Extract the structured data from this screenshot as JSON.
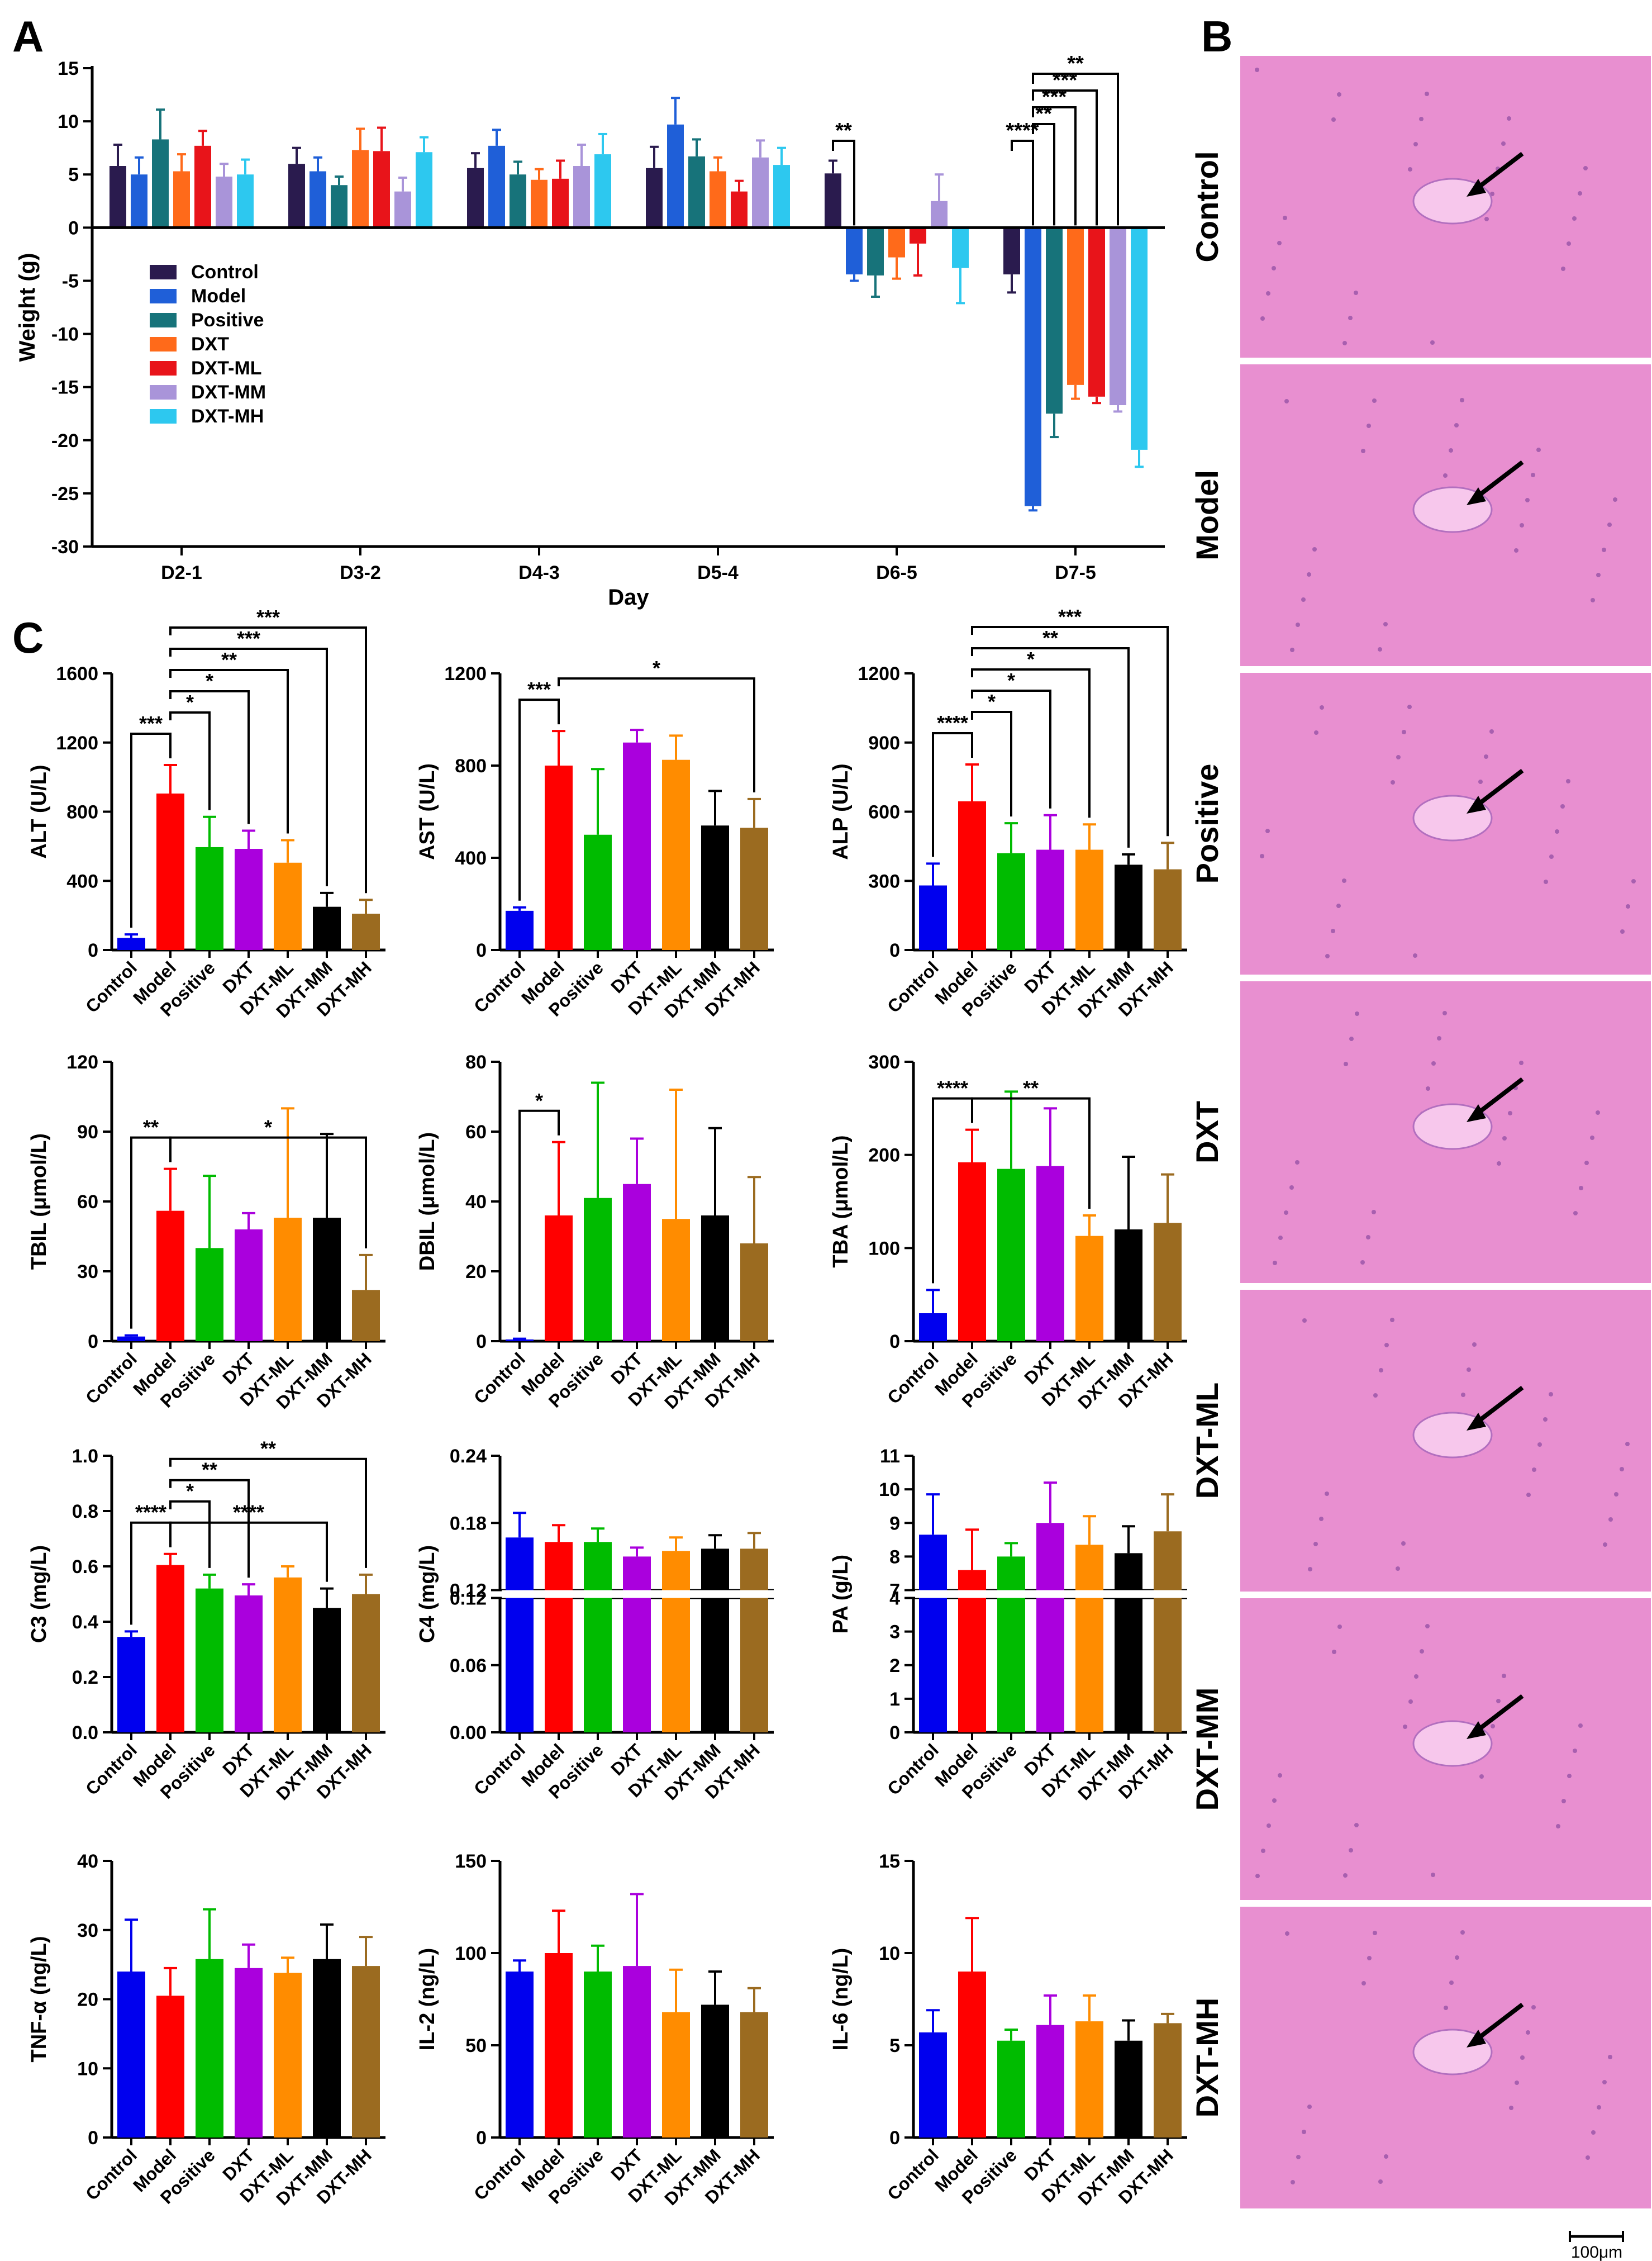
{
  "panels": {
    "A": "A",
    "B": "B",
    "C": "C"
  },
  "groups": [
    "Control",
    "Model",
    "Positive",
    "DXT",
    "DXT-ML",
    "DXT-MM",
    "DXT-MH"
  ],
  "colors": {
    "weight": [
      "#2a1b4e",
      "#1f5fd8",
      "#17737a",
      "#ff6a1a",
      "#e8141a",
      "#a994d9",
      "#2dc8ef"
    ],
    "serum": [
      "#0000ee",
      "#ff0000",
      "#00bb00",
      "#aa00dd",
      "#ff8c00",
      "#000000",
      "#9b6b20"
    ],
    "tissue": "#e88fd0"
  },
  "histology": {
    "labels": [
      "Control",
      "Model",
      "Positive",
      "DXT",
      "DXT-ML",
      "DXT-MM",
      "DXT-MH"
    ],
    "scale_bar": "100μm"
  },
  "chart_data": [
    {
      "id": "A",
      "type": "bar",
      "title": "",
      "xlabel": "Day",
      "ylabel": "Weight (g)",
      "ylim": [
        -30,
        15
      ],
      "yticks": [
        15,
        10,
        5,
        0,
        -5,
        -10,
        -15,
        -20,
        -25,
        -30
      ],
      "categories": [
        "D2-1",
        "D3-2",
        "D4-3",
        "D5-4",
        "D6-5",
        "D7-5"
      ],
      "legend": [
        "Control",
        "Model",
        "Positive",
        "DXT",
        "DXT-ML",
        "DXT-MM",
        "DXT-MH"
      ],
      "series": [
        {
          "name": "Control",
          "values": [
            5.8,
            6.0,
            5.6,
            5.6,
            5.1,
            -4.4
          ],
          "errors": [
            2.0,
            1.5,
            1.4,
            2.0,
            1.2,
            1.7
          ]
        },
        {
          "name": "Model",
          "values": [
            5.0,
            5.3,
            7.7,
            9.7,
            -4.4,
            -26.2
          ],
          "errors": [
            1.6,
            1.3,
            1.5,
            2.5,
            0.6,
            0.4
          ]
        },
        {
          "name": "Positive",
          "values": [
            8.3,
            4.0,
            5.0,
            6.7,
            -4.5,
            -17.5
          ],
          "errors": [
            2.8,
            0.8,
            1.2,
            1.6,
            2.0,
            2.2
          ]
        },
        {
          "name": "DXT",
          "values": [
            5.3,
            7.3,
            4.5,
            5.3,
            -2.8,
            -14.8
          ],
          "errors": [
            1.6,
            2.0,
            1.0,
            1.3,
            2.0,
            1.3
          ]
        },
        {
          "name": "DXT-ML",
          "values": [
            7.7,
            7.2,
            4.6,
            3.4,
            -1.5,
            -15.9
          ],
          "errors": [
            1.4,
            2.2,
            1.7,
            1.0,
            3.0,
            0.6
          ]
        },
        {
          "name": "DXT-MM",
          "values": [
            4.8,
            3.4,
            5.8,
            6.6,
            2.5,
            -16.7
          ],
          "errors": [
            1.2,
            1.3,
            2.0,
            1.6,
            2.5,
            0.6
          ]
        },
        {
          "name": "DXT-MH",
          "values": [
            5.0,
            7.1,
            6.9,
            5.9,
            -3.8,
            -20.9
          ],
          "errors": [
            1.4,
            1.4,
            1.9,
            1.6,
            3.3,
            1.6
          ]
        }
      ],
      "brackets": [
        {
          "day": 4,
          "from": 0,
          "to": 1,
          "level": 0,
          "label": "**"
        },
        {
          "day": 5,
          "from": 0,
          "to": 1,
          "level": 0,
          "label": "****"
        },
        {
          "day": 5,
          "from": 1,
          "to": 2,
          "level": 1,
          "label": "**"
        },
        {
          "day": 5,
          "from": 1,
          "to": 3,
          "level": 2,
          "label": "***"
        },
        {
          "day": 5,
          "from": 1,
          "to": 4,
          "level": 3,
          "label": "***"
        },
        {
          "day": 5,
          "from": 1,
          "to": 5,
          "level": 4,
          "label": "**"
        }
      ]
    },
    {
      "id": "ALT",
      "type": "bar",
      "ylabel": "ALT (U/L)",
      "ylim": [
        0,
        1600
      ],
      "yticks": [
        0,
        400,
        800,
        1200,
        1600
      ],
      "values": [
        70,
        905,
        595,
        585,
        505,
        250,
        210
      ],
      "errors": [
        20,
        165,
        175,
        105,
        130,
        80,
        80
      ],
      "brackets": [
        {
          "from": 0,
          "to": 1,
          "level": 0,
          "label": "***"
        },
        {
          "from": 1,
          "to": 2,
          "level": 1,
          "label": "*"
        },
        {
          "from": 1,
          "to": 3,
          "level": 2,
          "label": "*"
        },
        {
          "from": 1,
          "to": 4,
          "level": 3,
          "label": "**"
        },
        {
          "from": 1,
          "to": 5,
          "level": 4,
          "label": "***"
        },
        {
          "from": 1,
          "to": 6,
          "level": 5,
          "label": "***"
        }
      ]
    },
    {
      "id": "AST",
      "type": "bar",
      "ylabel": "AST (U/L)",
      "ylim": [
        0,
        1200
      ],
      "yticks": [
        0,
        400,
        800,
        1200
      ],
      "values": [
        170,
        800,
        500,
        900,
        825,
        540,
        530
      ],
      "errors": [
        15,
        150,
        285,
        55,
        105,
        150,
        125
      ],
      "brackets": [
        {
          "from": 0,
          "to": 1,
          "level": 0,
          "label": "***"
        },
        {
          "from": 1,
          "to": 6,
          "level": 1,
          "label": "*"
        }
      ]
    },
    {
      "id": "ALP",
      "type": "bar",
      "ylabel": "ALP (U/L)",
      "ylim": [
        0,
        1200
      ],
      "yticks": [
        0,
        300,
        600,
        900,
        1200
      ],
      "values": [
        280,
        645,
        420,
        435,
        435,
        370,
        350
      ],
      "errors": [
        95,
        160,
        130,
        150,
        110,
        45,
        115
      ],
      "brackets": [
        {
          "from": 0,
          "to": 1,
          "level": 0,
          "label": "****"
        },
        {
          "from": 1,
          "to": 2,
          "level": 1,
          "label": "*"
        },
        {
          "from": 1,
          "to": 3,
          "level": 2,
          "label": "*"
        },
        {
          "from": 1,
          "to": 4,
          "level": 3,
          "label": "*"
        },
        {
          "from": 1,
          "to": 5,
          "level": 4,
          "label": "**"
        },
        {
          "from": 1,
          "to": 6,
          "level": 5,
          "label": "***"
        }
      ]
    },
    {
      "id": "TBIL",
      "type": "bar",
      "ylabel": "TBIL (μmol/L)",
      "ylim": [
        0,
        120
      ],
      "yticks": [
        0,
        30,
        60,
        90,
        120
      ],
      "values": [
        2,
        56,
        40,
        48,
        53,
        53,
        22
      ],
      "errors": [
        0.5,
        18,
        31,
        7,
        47,
        36,
        15
      ],
      "brackets": [
        {
          "from": 0,
          "to": 1,
          "level": 0,
          "label": "**"
        },
        {
          "from": 1,
          "to": 6,
          "level": 0,
          "label": "*"
        }
      ]
    },
    {
      "id": "DBIL",
      "type": "bar",
      "ylabel": "DBIL (μmol/L)",
      "ylim": [
        0,
        80
      ],
      "yticks": [
        0,
        20,
        40,
        60,
        80
      ],
      "values": [
        0.5,
        36,
        41,
        45,
        35,
        36,
        28
      ],
      "errors": [
        0.2,
        21,
        33,
        13,
        37,
        25,
        19
      ],
      "brackets": [
        {
          "from": 0,
          "to": 1,
          "level": 0,
          "label": "*"
        }
      ]
    },
    {
      "id": "TBA",
      "type": "bar",
      "ylabel": "TBA (μmol/L)",
      "ylim": [
        0,
        300
      ],
      "yticks": [
        0,
        100,
        200,
        300
      ],
      "values": [
        30,
        192,
        185,
        188,
        113,
        120,
        127
      ],
      "errors": [
        25,
        35,
        83,
        62,
        22,
        78,
        52
      ],
      "brackets": [
        {
          "from": 0,
          "to": 1,
          "level": 0,
          "label": "****"
        },
        {
          "from": 1,
          "to": 4,
          "level": 0,
          "label": "**"
        }
      ]
    },
    {
      "id": "C3",
      "type": "bar",
      "ylabel": "C3 (mg/L)",
      "ylim": [
        0,
        1.0
      ],
      "yticks": [
        0.0,
        0.2,
        0.4,
        0.6,
        0.8,
        1.0
      ],
      "ytick_labels": [
        "0.0",
        "0.2",
        "0.4",
        "0.6",
        "0.8",
        "1.0"
      ],
      "values": [
        0.345,
        0.605,
        0.52,
        0.495,
        0.56,
        0.45,
        0.5
      ],
      "errors": [
        0.02,
        0.04,
        0.05,
        0.04,
        0.04,
        0.07,
        0.07
      ],
      "brackets": [
        {
          "from": 0,
          "to": 1,
          "level": 0,
          "label": "****"
        },
        {
          "from": 1,
          "to": 5,
          "level": 0,
          "label": "****"
        },
        {
          "from": 1,
          "to": 2,
          "level": 1,
          "label": "*"
        },
        {
          "from": 1,
          "to": 3,
          "level": 2,
          "label": "**"
        },
        {
          "from": 1,
          "to": 6,
          "level": 3,
          "label": "**"
        }
      ]
    },
    {
      "id": "C4",
      "type": "bar",
      "ylabel": "C4 (mg/L)",
      "broken": true,
      "lower": {
        "range": [
          0,
          0.12
        ],
        "ticks": [
          0.0,
          0.06,
          0.12
        ],
        "labels": [
          "0.00",
          "0.06",
          "0.12"
        ]
      },
      "upper": {
        "range": [
          0.12,
          0.24
        ],
        "ticks": [
          0.12,
          0.18,
          0.24
        ],
        "labels": [
          "0.12",
          "0.18",
          "0.24"
        ]
      },
      "values": [
        0.167,
        0.163,
        0.163,
        0.15,
        0.155,
        0.157,
        0.157
      ],
      "errors": [
        0.022,
        0.015,
        0.012,
        0.008,
        0.012,
        0.012,
        0.014
      ]
    },
    {
      "id": "PA",
      "type": "bar",
      "ylabel": "PA (g/L)",
      "broken": true,
      "lower": {
        "range": [
          0,
          4
        ],
        "ticks": [
          0,
          1,
          2,
          3,
          4
        ],
        "labels": [
          "0",
          "1",
          "2",
          "3",
          "4"
        ]
      },
      "upper": {
        "range": [
          7,
          11
        ],
        "ticks": [
          7,
          8,
          9,
          10,
          11
        ],
        "labels": [
          "7",
          "8",
          "9",
          "10",
          "11"
        ]
      },
      "values": [
        8.65,
        7.6,
        8.0,
        9.0,
        8.35,
        8.1,
        8.75
      ],
      "errors": [
        1.2,
        1.2,
        0.4,
        1.2,
        0.85,
        0.8,
        1.1
      ]
    },
    {
      "id": "TNF",
      "type": "bar",
      "ylabel": "TNF-α (ng/L)",
      "ylim": [
        0,
        40
      ],
      "yticks": [
        0,
        10,
        20,
        30,
        40
      ],
      "values": [
        24,
        20.5,
        25.8,
        24.5,
        23.8,
        25.8,
        24.8
      ],
      "errors": [
        7.5,
        4,
        7.2,
        3.4,
        2.2,
        5,
        4.2
      ]
    },
    {
      "id": "IL2",
      "type": "bar",
      "ylabel": "IL-2 (ng/L)",
      "ylim": [
        0,
        150
      ],
      "yticks": [
        0,
        50,
        100,
        150
      ],
      "values": [
        90,
        100,
        90,
        93,
        68,
        72,
        68
      ],
      "errors": [
        6,
        23,
        14,
        39,
        23,
        18,
        13
      ]
    },
    {
      "id": "IL6",
      "type": "bar",
      "ylabel": "IL-6 (ng/L)",
      "ylim": [
        0,
        15
      ],
      "yticks": [
        0,
        5,
        10,
        15
      ],
      "values": [
        5.7,
        9.0,
        5.25,
        6.1,
        6.3,
        5.25,
        6.2
      ],
      "errors": [
        1.2,
        2.9,
        0.6,
        1.6,
        1.4,
        1.1,
        0.5
      ]
    }
  ]
}
